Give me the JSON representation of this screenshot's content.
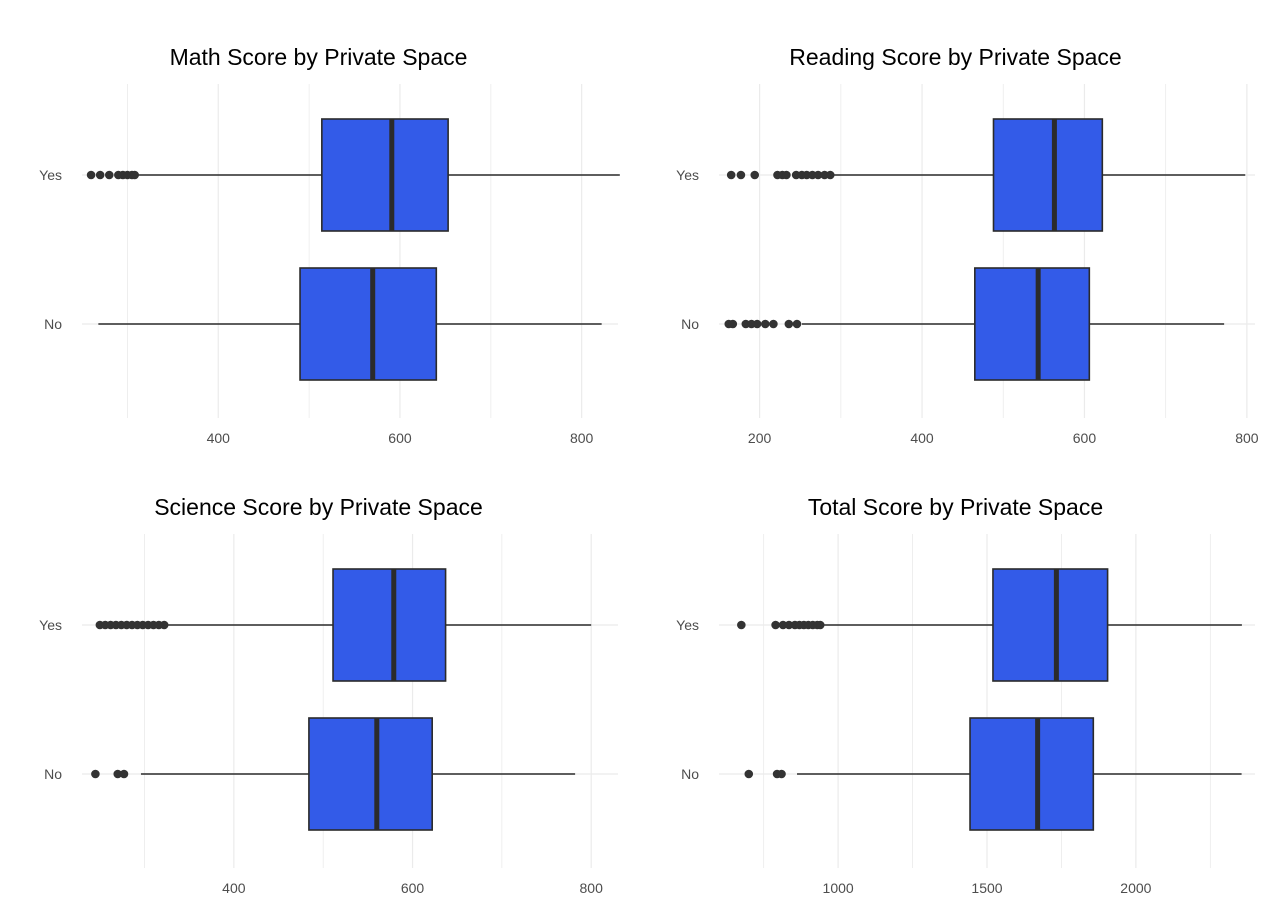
{
  "colors": {
    "box_fill": "#335be8",
    "box_line": "#2b2b2b",
    "outlier": "#333333",
    "grid": "#ebebeb"
  },
  "chart_data": [
    {
      "type": "boxplot",
      "orientation": "horizontal",
      "title": "Math Score by Private Space",
      "xlabel": "",
      "ylabel": "",
      "categories": [
        "Yes",
        "No"
      ],
      "xlim": [
        250,
        840
      ],
      "xticks": [
        400,
        600,
        800
      ],
      "grid": true,
      "legend": "none",
      "boxes": [
        {
          "category": "Yes",
          "whisker_low": 310,
          "q1": 514,
          "median": 591,
          "q3": 653,
          "whisker_high": 842,
          "outliers": [
            260,
            270,
            280,
            290,
            295,
            300,
            305,
            308
          ]
        },
        {
          "category": "No",
          "whisker_low": 268,
          "q1": 490,
          "median": 570,
          "q3": 640,
          "whisker_high": 822,
          "outliers": []
        }
      ]
    },
    {
      "type": "boxplot",
      "orientation": "horizontal",
      "title": "Reading Score by Private Space",
      "xlabel": "",
      "ylabel": "",
      "categories": [
        "Yes",
        "No"
      ],
      "xlim": [
        150,
        810
      ],
      "xticks": [
        200,
        400,
        600,
        800
      ],
      "grid": true,
      "legend": "none",
      "boxes": [
        {
          "category": "Yes",
          "whisker_low": 290,
          "q1": 488,
          "median": 563,
          "q3": 622,
          "whisker_high": 798,
          "outliers": [
            165,
            177,
            194,
            222,
            228,
            233,
            245,
            252,
            258,
            265,
            272,
            280,
            287
          ]
        },
        {
          "category": "No",
          "whisker_low": 252,
          "q1": 465,
          "median": 543,
          "q3": 606,
          "whisker_high": 772,
          "outliers": [
            162,
            167,
            183,
            190,
            197,
            207,
            217,
            236,
            246
          ]
        }
      ]
    },
    {
      "type": "boxplot",
      "orientation": "horizontal",
      "title": "Science Score by Private Space",
      "xlabel": "",
      "ylabel": "",
      "categories": [
        "Yes",
        "No"
      ],
      "xlim": [
        230,
        830
      ],
      "xticks": [
        400,
        600,
        800
      ],
      "grid": true,
      "legend": "none",
      "boxes": [
        {
          "category": "Yes",
          "whisker_low": 325,
          "q1": 511,
          "median": 579,
          "q3": 637,
          "whisker_high": 800,
          "outliers": [
            250,
            256,
            262,
            268,
            274,
            280,
            286,
            292,
            298,
            304,
            310,
            316,
            322
          ]
        },
        {
          "category": "No",
          "whisker_low": 296,
          "q1": 484,
          "median": 560,
          "q3": 622,
          "whisker_high": 782,
          "outliers": [
            245,
            270,
            277
          ]
        }
      ]
    },
    {
      "type": "boxplot",
      "orientation": "horizontal",
      "title": "Total Score by Private Space",
      "xlabel": "",
      "ylabel": "",
      "categories": [
        "Yes",
        "No"
      ],
      "xlim": [
        600,
        2400
      ],
      "xticks": [
        1000,
        1500,
        2000
      ],
      "grid": true,
      "legend": "none",
      "boxes": [
        {
          "category": "Yes",
          "whisker_low": 945,
          "q1": 1520,
          "median": 1733,
          "q3": 1905,
          "whisker_high": 2356,
          "outliers": [
            675,
            790,
            815,
            835,
            855,
            870,
            885,
            900,
            915,
            930,
            940
          ]
        },
        {
          "category": "No",
          "whisker_low": 862,
          "q1": 1443,
          "median": 1670,
          "q3": 1857,
          "whisker_high": 2355,
          "outliers": [
            700,
            795,
            810
          ]
        }
      ]
    }
  ]
}
